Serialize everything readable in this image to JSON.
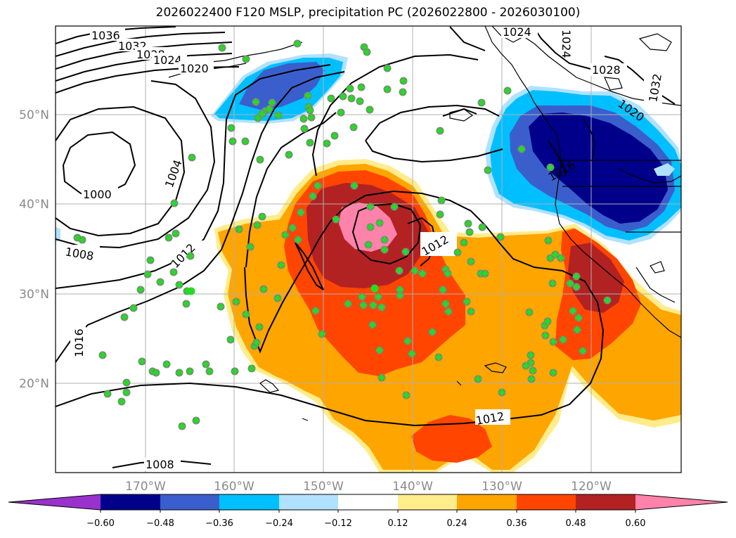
{
  "title": "2026022400 F120 MSLP, precipitation PC (2026022800 - 2026030100)",
  "axes": {
    "lon_ticks": [
      "170°W",
      "160°W",
      "150°W",
      "140°W",
      "130°W",
      "120°W"
    ],
    "lat_ticks": [
      "50°N",
      "40°N",
      "30°N",
      "20°N"
    ]
  },
  "colorbar": {
    "ticks": [
      "−0.60",
      "−0.48",
      "−0.36",
      "−0.24",
      "−0.12",
      "0.12",
      "0.24",
      "0.36",
      "0.48",
      "0.60"
    ],
    "colors": [
      "#9932cc",
      "#00008b",
      "#3a5fcd",
      "#00bfff",
      "#b0e2ff",
      "#ffffff",
      "#ffec8b",
      "#ffa500",
      "#ff4500",
      "#b22222",
      "#ff82ab"
    ]
  },
  "contour_labels": [
    "1036",
    "1032",
    "1028",
    "1024",
    "1020",
    "1004",
    "1000",
    "1008",
    "1012",
    "1016",
    "1012",
    "1012",
    "1008",
    "1024",
    "1024",
    "1028",
    "1032",
    "1020",
    "1016"
  ],
  "colors": {
    "marker_fill": "#22dd22",
    "marker_edge": "#808080",
    "coast": "#000000",
    "grid": "#b0b0b0"
  }
}
